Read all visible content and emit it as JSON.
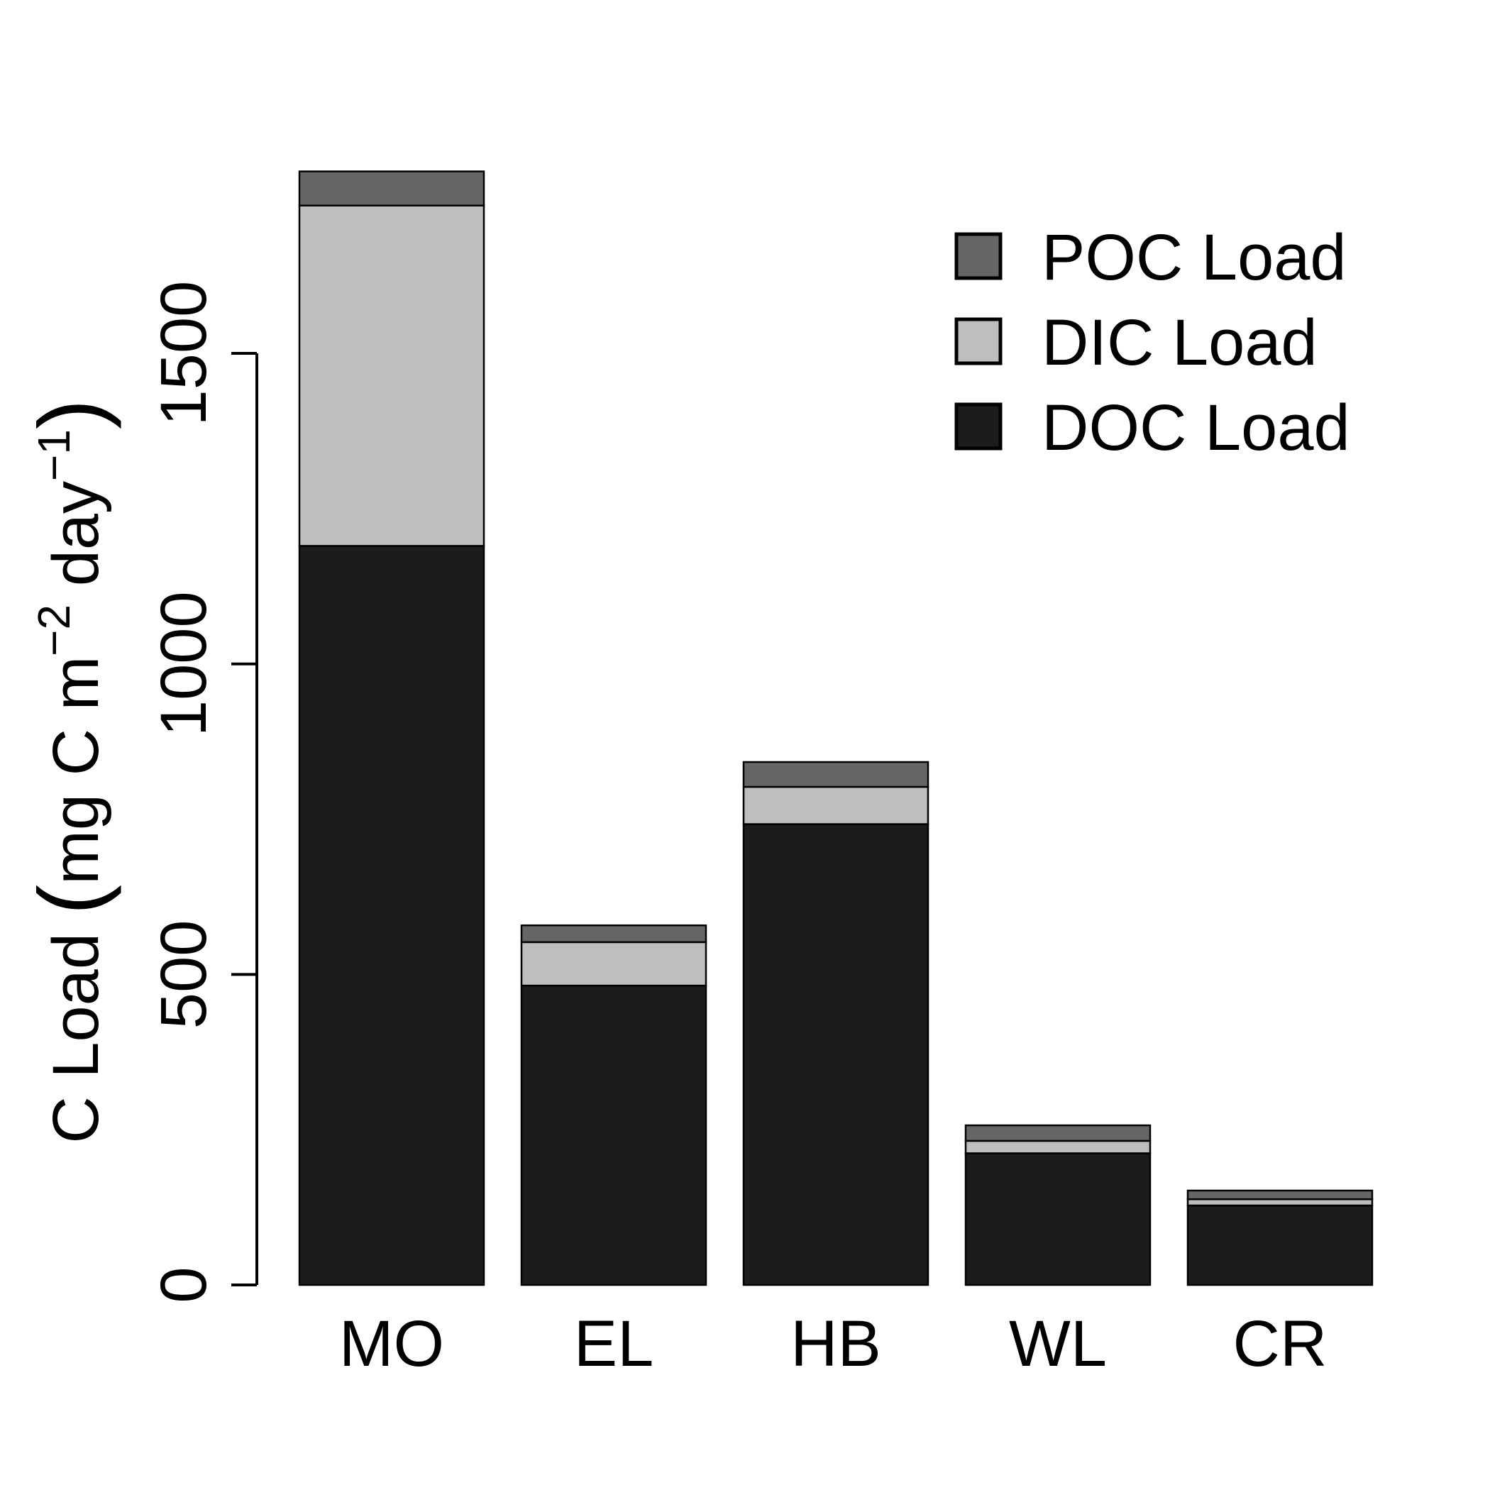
{
  "chart_data": {
    "type": "bar",
    "stacked": true,
    "title": "",
    "xlabel": "",
    "ylabel": {
      "prefix": "C Load ",
      "open_paren": "(",
      "unit_main": "mg C m",
      "exp1": "−2",
      "unit_mid": " day",
      "exp2": "−1",
      "close_paren": ")"
    },
    "categories": [
      "MO",
      "EL",
      "HB",
      "WL",
      "CR"
    ],
    "ylim": [
      0,
      1800
    ],
    "yticks": [
      0,
      500,
      1000,
      1500
    ],
    "ytick_labels": [
      "0",
      "500",
      "1000",
      "1500"
    ],
    "legend_position": "top-right",
    "series": [
      {
        "name": "DOC Load",
        "color": "#1c1c1c",
        "values": [
          1190,
          482,
          742,
          212,
          128
        ]
      },
      {
        "name": "DIC Load",
        "color": "#bebebe",
        "values": [
          548,
          70,
          60,
          20,
          10
        ]
      },
      {
        "name": "POC Load",
        "color": "#666666",
        "values": [
          55,
          27,
          40,
          25,
          14
        ]
      }
    ],
    "legend_order": [
      "POC Load",
      "DIC Load",
      "DOC Load"
    ]
  }
}
